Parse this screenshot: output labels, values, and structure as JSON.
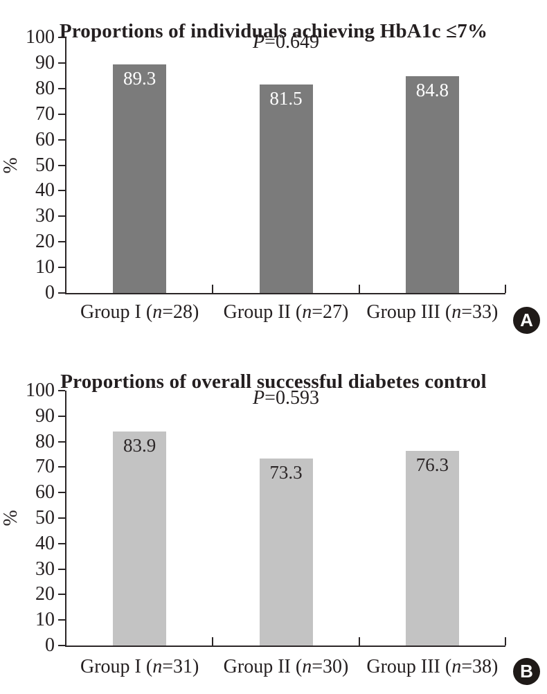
{
  "text_color": "#241f20",
  "axis_color": "#2a2526",
  "badge_style": {
    "background": "#1f1a18",
    "foreground": "#ffffff"
  },
  "chart_data": [
    {
      "type": "bar",
      "panel_label": "A",
      "title": "Proportions of individuals achieving HbA1c ≤7%",
      "p_annotation": "P=0.649",
      "p_var": "P",
      "p_rest": "=0.649",
      "ylabel": "%",
      "ylim": [
        0,
        100
      ],
      "ytick_step": 10,
      "yticks": [
        0,
        10,
        20,
        30,
        40,
        50,
        60,
        70,
        80,
        90,
        100
      ],
      "grid": false,
      "legend": "none",
      "categories": [
        "Group I (n=28)",
        "Group II (n=27)",
        "Group III (n=33)"
      ],
      "cat_parts": [
        [
          "Group I (",
          "n",
          "=28)"
        ],
        [
          "Group II (",
          "n",
          "=27)"
        ],
        [
          "Group III (",
          "n",
          "=33)"
        ]
      ],
      "group_sizes": [
        28,
        27,
        33
      ],
      "values": [
        89.3,
        81.5,
        84.8
      ],
      "value_labels": [
        "89.3",
        "81.5",
        "84.8"
      ],
      "bar_color": "#7b7b7b",
      "value_label_color": "#ffffff"
    },
    {
      "type": "bar",
      "panel_label": "B",
      "title": "Proportions of overall successful diabetes control",
      "p_annotation": "P=0.593",
      "p_var": "P",
      "p_rest": "=0.593",
      "ylabel": "%",
      "ylim": [
        0,
        100
      ],
      "ytick_step": 10,
      "yticks": [
        0,
        10,
        20,
        30,
        40,
        50,
        60,
        70,
        80,
        90,
        100
      ],
      "grid": false,
      "legend": "none",
      "categories": [
        "Group I (n=31)",
        "Group II (n=30)",
        "Group III (n=38)"
      ],
      "cat_parts": [
        [
          "Group I (",
          "n",
          "=31)"
        ],
        [
          "Group II (",
          "n",
          "=30)"
        ],
        [
          "Group III (",
          "n",
          "=38)"
        ]
      ],
      "group_sizes": [
        31,
        30,
        38
      ],
      "values": [
        83.9,
        73.3,
        76.3
      ],
      "value_labels": [
        "83.9",
        "73.3",
        "76.3"
      ],
      "bar_color": "#c3c3c3",
      "value_label_color": "#2b2627"
    }
  ]
}
